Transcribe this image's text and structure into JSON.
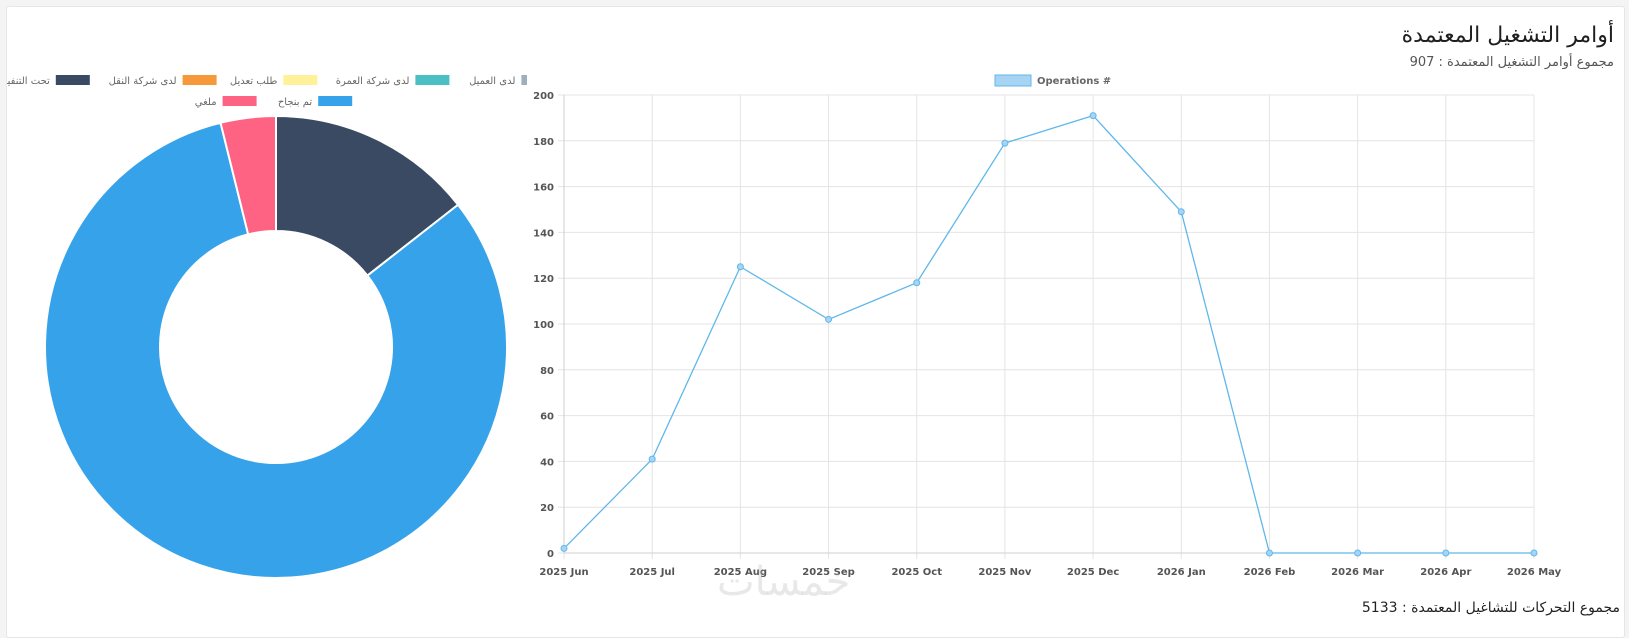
{
  "header": {
    "title": "أوامر التشغيل المعتمدة",
    "subtitle": "مجموع أوامر التشغيل المعتمدة : 907"
  },
  "footer": {
    "text": "مجموع التحركات للتشاغيل المعتمدة : 5133"
  },
  "watermark": "خمسات",
  "colors": {
    "line": "#5fb7eb",
    "line_fill": "#a8d4f4",
    "grid": "#e4e4e4",
    "axis_text": "#555555"
  },
  "chart_data": [
    {
      "type": "doughnut",
      "legend_position": "top",
      "series": [
        {
          "label": "لدى العميل",
          "value": 0,
          "color": "#9fb0bc"
        },
        {
          "label": "لدى شركة العمرة",
          "value": 0,
          "color": "#4bbfc4"
        },
        {
          "label": "طلب تعديل",
          "value": 0,
          "color": "#fff19a"
        },
        {
          "label": "لدى شركة النقل",
          "value": 0,
          "color": "#f6993a"
        },
        {
          "label": "تحت التنفيذ",
          "value": 131,
          "color": "#394a62"
        },
        {
          "label": "تم بنجاح",
          "value": 741,
          "color": "#36a2ea"
        },
        {
          "label": "ملغي",
          "value": 35,
          "color": "#ff6384"
        }
      ]
    },
    {
      "type": "line",
      "legend": [
        "Operations #"
      ],
      "legend_position": "top",
      "categories": [
        "2025 Jun",
        "2025 Jul",
        "2025 Aug",
        "2025 Sep",
        "2025 Oct",
        "2025 Nov",
        "2025 Dec",
        "2026 Jan",
        "2026 Feb",
        "2026 Mar",
        "2026 Apr",
        "2026 May"
      ],
      "series": [
        {
          "name": "Operations #",
          "values": [
            2,
            41,
            125,
            102,
            118,
            179,
            191,
            149,
            0,
            0,
            0,
            0
          ]
        }
      ],
      "ylim": [
        0,
        200
      ],
      "yticks": [
        0,
        20,
        40,
        60,
        80,
        100,
        120,
        140,
        160,
        180,
        200
      ],
      "grid": true
    }
  ]
}
